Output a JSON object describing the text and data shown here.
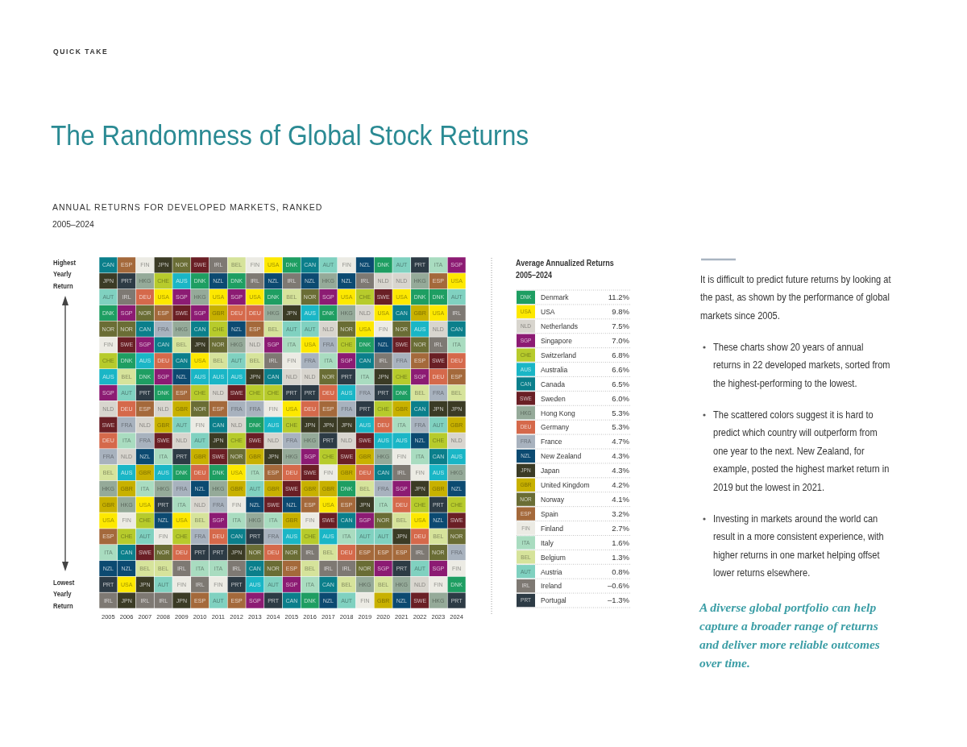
{
  "chart_data": [
    {
      "type": "heatmap",
      "title": "The Randomness of Global Stock Returns",
      "subtitle": "ANNUAL RETURNS FOR DEVELOPED MARKETS, RANKED",
      "annotations": [
        "QUICK TAKE",
        "2005–2024",
        "Highest Yearly Return",
        "Lowest Yearly Return"
      ],
      "categories": [
        "2005",
        "2006",
        "2007",
        "2008",
        "2009",
        "2010",
        "2011",
        "2012",
        "2013",
        "2014",
        "2015",
        "2016",
        "2017",
        "2018",
        "2019",
        "2020",
        "2021",
        "2022",
        "2023",
        "2024"
      ],
      "y_categories": [
        null,
        null,
        null,
        null,
        null,
        null,
        null,
        null,
        null,
        null,
        null,
        null,
        null,
        null,
        null,
        null,
        null,
        null,
        null,
        null,
        null,
        null
      ],
      "cells": [
        [
          "CAN",
          "ESP",
          "FIN",
          "JPN",
          "NOR",
          "SWE",
          "IRL",
          "BEL",
          "FIN",
          "USA",
          "DNK",
          "CAN",
          "AUT",
          "FIN",
          "NZL",
          "DNK",
          "AUT",
          "PRT",
          "ITA",
          "SGP"
        ],
        [
          "JPN",
          "PRT",
          "HKG",
          "CHE",
          "AUS",
          "DNK",
          "NZL",
          "DNK",
          "IRL",
          "NZL",
          "IRL",
          "NZL",
          "HKG",
          "NZL",
          "IRL",
          "NLD",
          "NLD",
          "HKG",
          "ESP",
          "USA"
        ],
        [
          "AUT",
          "IRL",
          "DEU",
          "USA",
          "SGP",
          "HKG",
          "USA",
          "SGP",
          "USA",
          "DNK",
          "BEL",
          "NOR",
          "SGP",
          "USA",
          "CHE",
          "SWE",
          "USA",
          "DNK",
          "DNK",
          "AUT"
        ],
        [
          "DNK",
          "SGP",
          "NOR",
          "ESP",
          "SWE",
          "SGP",
          "GBR",
          "DEU",
          "DEU",
          "HKG",
          "JPN",
          "AUS",
          "DNK",
          "HKG",
          "NLD",
          "USA",
          "CAN",
          "GBR",
          "USA",
          "IRL"
        ],
        [
          "NOR",
          "NOR",
          "CAN",
          "FRA",
          "HKG",
          "CAN",
          "CHE",
          "NZL",
          "ESP",
          "BEL",
          "AUT",
          "AUT",
          "NLD",
          "NOR",
          "USA",
          "FIN",
          "NOR",
          "AUS",
          "NLD",
          "CAN"
        ],
        [
          "FIN",
          "SWE",
          "SGP",
          "CAN",
          "BEL",
          "JPN",
          "NOR",
          "HKG",
          "NLD",
          "SGP",
          "ITA",
          "USA",
          "FRA",
          "CHE",
          "DNK",
          "NZL",
          "SWE",
          "NOR",
          "IRL",
          "ITA"
        ],
        [
          "CHE",
          "DNK",
          "AUS",
          "DEU",
          "CAN",
          "USA",
          "BEL",
          "AUT",
          "BEL",
          "IRL",
          "FIN",
          "FRA",
          "ITA",
          "SGP",
          "CAN",
          "IRL",
          "FRA",
          "ESP",
          "SWE",
          "DEU"
        ],
        [
          "AUS",
          "BEL",
          "DNK",
          "SGP",
          "NZL",
          "AUS",
          "AUS",
          "AUS",
          "JPN",
          "CAN",
          "NLD",
          "NLD",
          "NOR",
          "PRT",
          "ITA",
          "JPN",
          "CHE",
          "SGP",
          "DEU",
          "ESP"
        ],
        [
          "SGP",
          "AUT",
          "PRT",
          "DNK",
          "ESP",
          "CHE",
          "NLD",
          "SWE",
          "CHE",
          "CHE",
          "PRT",
          "PRT",
          "DEU",
          "AUS",
          "FRA",
          "PRT",
          "DNK",
          "BEL",
          "FRA",
          "BEL"
        ],
        [
          "NLD",
          "DEU",
          "ESP",
          "NLD",
          "GBR",
          "NOR",
          "ESP",
          "FRA",
          "FRA",
          "FIN",
          "USA",
          "DEU",
          "ESP",
          "FRA",
          "PRT",
          "CHE",
          "GBR",
          "CAN",
          "JPN",
          "JPN"
        ],
        [
          "SWE",
          "FRA",
          "NLD",
          "GBR",
          "AUT",
          "FIN",
          "CAN",
          "NLD",
          "DNK",
          "AUS",
          "CHE",
          "JPN",
          "JPN",
          "JPN",
          "AUS",
          "DEU",
          "ITA",
          "FRA",
          "AUT",
          "GBR"
        ],
        [
          "DEU",
          "ITA",
          "FRA",
          "SWE",
          "NLD",
          "AUT",
          "JPN",
          "CHE",
          "SWE",
          "NLD",
          "FRA",
          "HKG",
          "PRT",
          "NLD",
          "SWE",
          "AUS",
          "AUS",
          "NZL",
          "CHE",
          "NLD"
        ],
        [
          "FRA",
          "NLD",
          "NZL",
          "ITA",
          "PRT",
          "GBR",
          "SWE",
          "NOR",
          "GBR",
          "JPN",
          "HKG",
          "SGP",
          "CHE",
          "SWE",
          "GBR",
          "HKG",
          "FIN",
          "ITA",
          "CAN",
          "AUS"
        ],
        [
          "BEL",
          "AUS",
          "GBR",
          "AUS",
          "DNK",
          "DEU",
          "DNK",
          "USA",
          "ITA",
          "ESP",
          "DEU",
          "SWE",
          "FIN",
          "GBR",
          "DEU",
          "CAN",
          "IRL",
          "FIN",
          "AUS",
          "HKG"
        ],
        [
          "HKG",
          "GBR",
          "ITA",
          "HKG",
          "FRA",
          "NZL",
          "HKG",
          "GBR",
          "AUT",
          "GBR",
          "SWE",
          "GBR",
          "GBR",
          "DNK",
          "BEL",
          "FRA",
          "SGP",
          "JPN",
          "GBR",
          "NZL"
        ],
        [
          "GBR",
          "HKG",
          "USA",
          "PRT",
          "ITA",
          "NLD",
          "FRA",
          "FIN",
          "NZL",
          "SWE",
          "NZL",
          "ESP",
          "USA",
          "ESP",
          "JPN",
          "ITA",
          "DEU",
          "CHE",
          "PRT",
          "CHE"
        ],
        [
          "USA",
          "FIN",
          "CHE",
          "NZL",
          "USA",
          "BEL",
          "SGP",
          "ITA",
          "HKG",
          "ITA",
          "GBR",
          "FIN",
          "SWE",
          "CAN",
          "SGP",
          "NOR",
          "BEL",
          "USA",
          "NZL",
          "SWE"
        ],
        [
          "ESP",
          "CHE",
          "AUT",
          "FIN",
          "CHE",
          "FRA",
          "DEU",
          "CAN",
          "PRT",
          "FRA",
          "AUS",
          "CHE",
          "AUS",
          "ITA",
          "AUT",
          "AUT",
          "JPN",
          "DEU",
          "BEL",
          "NOR"
        ],
        [
          "ITA",
          "CAN",
          "SWE",
          "NOR",
          "DEU",
          "PRT",
          "PRT",
          "JPN",
          "NOR",
          "DEU",
          "NOR",
          "IRL",
          "BEL",
          "DEU",
          "ESP",
          "ESP",
          "ESP",
          "IRL",
          "NOR",
          "FRA"
        ],
        [
          "NZL",
          "NZL",
          "BEL",
          "BEL",
          "IRL",
          "ITA",
          "ITA",
          "IRL",
          "CAN",
          "NOR",
          "ESP",
          "BEL",
          "IRL",
          "IRL",
          "NOR",
          "SGP",
          "PRT",
          "AUT",
          "SGP",
          "FIN"
        ],
        [
          "PRT",
          "USA",
          "JPN",
          "AUT",
          "FIN",
          "IRL",
          "FIN",
          "PRT",
          "AUS",
          "AUT",
          "SGP",
          "ITA",
          "CAN",
          "BEL",
          "HKG",
          "BEL",
          "HKG",
          "NLD",
          "FIN",
          "DNK"
        ],
        [
          "IRL",
          "JPN",
          "IRL",
          "IRL",
          "JPN",
          "ESP",
          "AUT",
          "ESP",
          "SGP",
          "PRT",
          "CAN",
          "DNK",
          "NZL",
          "AUT",
          "FIN",
          "GBR",
          "NZL",
          "SWE",
          "HKG",
          "PRT"
        ]
      ],
      "colors": [
        [
          "#0b7f8b",
          "#a4693b",
          "#ecebe4",
          "#3b3b25",
          "#6a6d35",
          "#6a1f25",
          "#7e7973",
          "#d6e39b",
          "#ecebe4",
          "#fde800",
          "#1e9e62",
          "#0b7f8b",
          "#80d1c0",
          "#ecebe4",
          "#0c4a71",
          "#1e9e62",
          "#80d1c0",
          "#2d3b45",
          "#a9dcc0",
          "#8c1b73"
        ],
        [
          "#3b3b25",
          "#2d3b45",
          "#95aa99",
          "#b7cb2c",
          "#1ab6c6",
          "#1e9e62",
          "#0c4a71",
          "#1e9e62",
          "#7e7973",
          "#0c4a71",
          "#7e7973",
          "#0c4a71",
          "#95aa99",
          "#0c4a71",
          "#7e7973",
          "#d8d5ce",
          "#d8d5ce",
          "#95aa99",
          "#a4693b",
          "#fde800"
        ],
        [
          "#80d1c0",
          "#7e7973",
          "#d5694b",
          "#fde800",
          "#8c1b73",
          "#95aa99",
          "#fde800",
          "#8c1b73",
          "#fde800",
          "#1e9e62",
          "#d6e39b",
          "#6a6d35",
          "#8c1b73",
          "#fde800",
          "#b7cb2c",
          "#6a1f25",
          "#fde800",
          "#1e9e62",
          "#1e9e62",
          "#80d1c0"
        ],
        [
          "#1e9e62",
          "#8c1b73",
          "#6a6d35",
          "#a4693b",
          "#6a1f25",
          "#8c1b73",
          "#c8b100",
          "#d5694b",
          "#d5694b",
          "#95aa99",
          "#3b3b25",
          "#1ab6c6",
          "#1e9e62",
          "#95aa99",
          "#d8d5ce",
          "#fde800",
          "#0b7f8b",
          "#c8b100",
          "#fde800",
          "#7e7973"
        ],
        [
          "#6a6d35",
          "#6a6d35",
          "#0b7f8b",
          "#a8b2be",
          "#95aa99",
          "#0b7f8b",
          "#b7cb2c",
          "#0c4a71",
          "#a4693b",
          "#d6e39b",
          "#80d1c0",
          "#80d1c0",
          "#d8d5ce",
          "#6a6d35",
          "#fde800",
          "#ecebe4",
          "#6a6d35",
          "#1ab6c6",
          "#d8d5ce",
          "#0b7f8b"
        ],
        [
          "#ecebe4",
          "#6a1f25",
          "#8c1b73",
          "#0b7f8b",
          "#d6e39b",
          "#3b3b25",
          "#6a6d35",
          "#95aa99",
          "#d8d5ce",
          "#8c1b73",
          "#a9dcc0",
          "#fde800",
          "#a8b2be",
          "#b7cb2c",
          "#1e9e62",
          "#0c4a71",
          "#6a1f25",
          "#6a6d35",
          "#7e7973",
          "#a9dcc0"
        ],
        [
          "#b7cb2c",
          "#1e9e62",
          "#1ab6c6",
          "#d5694b",
          "#0b7f8b",
          "#fde800",
          "#d6e39b",
          "#80d1c0",
          "#d6e39b",
          "#7e7973",
          "#ecebe4",
          "#a8b2be",
          "#a9dcc0",
          "#8c1b73",
          "#0b7f8b",
          "#7e7973",
          "#a8b2be",
          "#a4693b",
          "#6a1f25",
          "#d5694b"
        ],
        [
          "#1ab6c6",
          "#d6e39b",
          "#1e9e62",
          "#8c1b73",
          "#0c4a71",
          "#1ab6c6",
          "#1ab6c6",
          "#1ab6c6",
          "#3b3b25",
          "#0b7f8b",
          "#d8d5ce",
          "#d8d5ce",
          "#6a6d35",
          "#2d3b45",
          "#a9dcc0",
          "#3b3b25",
          "#b7cb2c",
          "#8c1b73",
          "#d5694b",
          "#a4693b"
        ],
        [
          "#8c1b73",
          "#80d1c0",
          "#2d3b45",
          "#1e9e62",
          "#a4693b",
          "#b7cb2c",
          "#d8d5ce",
          "#6a1f25",
          "#b7cb2c",
          "#b7cb2c",
          "#2d3b45",
          "#2d3b45",
          "#d5694b",
          "#1ab6c6",
          "#a8b2be",
          "#2d3b45",
          "#1e9e62",
          "#d6e39b",
          "#a8b2be",
          "#d6e39b"
        ],
        [
          "#d8d5ce",
          "#d5694b",
          "#a4693b",
          "#d8d5ce",
          "#c8b100",
          "#6a6d35",
          "#a4693b",
          "#a8b2be",
          "#a8b2be",
          "#ecebe4",
          "#fde800",
          "#d5694b",
          "#a4693b",
          "#a8b2be",
          "#2d3b45",
          "#b7cb2c",
          "#c8b100",
          "#0b7f8b",
          "#3b3b25",
          "#3b3b25"
        ],
        [
          "#6a1f25",
          "#a8b2be",
          "#d8d5ce",
          "#c8b100",
          "#80d1c0",
          "#ecebe4",
          "#0b7f8b",
          "#d8d5ce",
          "#1e9e62",
          "#1ab6c6",
          "#b7cb2c",
          "#3b3b25",
          "#3b3b25",
          "#3b3b25",
          "#1ab6c6",
          "#d5694b",
          "#a9dcc0",
          "#a8b2be",
          "#80d1c0",
          "#c8b100"
        ],
        [
          "#d5694b",
          "#a9dcc0",
          "#a8b2be",
          "#6a1f25",
          "#d8d5ce",
          "#80d1c0",
          "#3b3b25",
          "#b7cb2c",
          "#6a1f25",
          "#d8d5ce",
          "#a8b2be",
          "#95aa99",
          "#2d3b45",
          "#d8d5ce",
          "#6a1f25",
          "#1ab6c6",
          "#1ab6c6",
          "#0c4a71",
          "#b7cb2c",
          "#d8d5ce"
        ],
        [
          "#a8b2be",
          "#d8d5ce",
          "#0c4a71",
          "#a9dcc0",
          "#2d3b45",
          "#c8b100",
          "#6a1f25",
          "#6a6d35",
          "#c8b100",
          "#3b3b25",
          "#95aa99",
          "#8c1b73",
          "#b7cb2c",
          "#6a1f25",
          "#c8b100",
          "#95aa99",
          "#ecebe4",
          "#a9dcc0",
          "#0b7f8b",
          "#1ab6c6"
        ],
        [
          "#d6e39b",
          "#1ab6c6",
          "#c8b100",
          "#1ab6c6",
          "#1e9e62",
          "#d5694b",
          "#1e9e62",
          "#fde800",
          "#a9dcc0",
          "#a4693b",
          "#d5694b",
          "#6a1f25",
          "#ecebe4",
          "#c8b100",
          "#d5694b",
          "#0b7f8b",
          "#7e7973",
          "#ecebe4",
          "#1ab6c6",
          "#95aa99"
        ],
        [
          "#95aa99",
          "#c8b100",
          "#a9dcc0",
          "#95aa99",
          "#a8b2be",
          "#0c4a71",
          "#95aa99",
          "#c8b100",
          "#80d1c0",
          "#c8b100",
          "#6a1f25",
          "#c8b100",
          "#c8b100",
          "#1e9e62",
          "#d6e39b",
          "#a8b2be",
          "#8c1b73",
          "#3b3b25",
          "#c8b100",
          "#0c4a71"
        ],
        [
          "#c8b100",
          "#95aa99",
          "#fde800",
          "#2d3b45",
          "#a9dcc0",
          "#d8d5ce",
          "#a8b2be",
          "#ecebe4",
          "#0c4a71",
          "#6a1f25",
          "#0c4a71",
          "#a4693b",
          "#fde800",
          "#a4693b",
          "#3b3b25",
          "#a9dcc0",
          "#d5694b",
          "#b7cb2c",
          "#2d3b45",
          "#b7cb2c"
        ],
        [
          "#fde800",
          "#ecebe4",
          "#b7cb2c",
          "#0c4a71",
          "#fde800",
          "#d6e39b",
          "#8c1b73",
          "#a9dcc0",
          "#95aa99",
          "#a9dcc0",
          "#c8b100",
          "#ecebe4",
          "#6a1f25",
          "#0b7f8b",
          "#8c1b73",
          "#6a6d35",
          "#d6e39b",
          "#fde800",
          "#0c4a71",
          "#6a1f25"
        ],
        [
          "#a4693b",
          "#b7cb2c",
          "#80d1c0",
          "#ecebe4",
          "#b7cb2c",
          "#a8b2be",
          "#d5694b",
          "#0b7f8b",
          "#2d3b45",
          "#a8b2be",
          "#1ab6c6",
          "#b7cb2c",
          "#1ab6c6",
          "#a9dcc0",
          "#80d1c0",
          "#80d1c0",
          "#3b3b25",
          "#d5694b",
          "#d6e39b",
          "#6a6d35"
        ],
        [
          "#a9dcc0",
          "#0b7f8b",
          "#6a1f25",
          "#6a6d35",
          "#d5694b",
          "#2d3b45",
          "#2d3b45",
          "#3b3b25",
          "#6a6d35",
          "#d5694b",
          "#6a6d35",
          "#7e7973",
          "#d6e39b",
          "#d5694b",
          "#a4693b",
          "#a4693b",
          "#a4693b",
          "#7e7973",
          "#6a6d35",
          "#a8b2be"
        ],
        [
          "#0c4a71",
          "#0c4a71",
          "#d6e39b",
          "#d6e39b",
          "#7e7973",
          "#a9dcc0",
          "#a9dcc0",
          "#7e7973",
          "#0b7f8b",
          "#6a6d35",
          "#a4693b",
          "#d6e39b",
          "#7e7973",
          "#7e7973",
          "#6a6d35",
          "#8c1b73",
          "#2d3b45",
          "#80d1c0",
          "#8c1b73",
          "#ecebe4"
        ],
        [
          "#2d3b45",
          "#fde800",
          "#3b3b25",
          "#80d1c0",
          "#ecebe4",
          "#7e7973",
          "#ecebe4",
          "#2d3b45",
          "#1ab6c6",
          "#80d1c0",
          "#8c1b73",
          "#a9dcc0",
          "#0b7f8b",
          "#d6e39b",
          "#95aa99",
          "#d6e39b",
          "#95aa99",
          "#d8d5ce",
          "#ecebe4",
          "#1e9e62"
        ],
        [
          "#7e7973",
          "#3b3b25",
          "#7e7973",
          "#7e7973",
          "#3b3b25",
          "#a4693b",
          "#80d1c0",
          "#a4693b",
          "#8c1b73",
          "#2d3b45",
          "#0b7f8b",
          "#1e9e62",
          "#0c4a71",
          "#80d1c0",
          "#ecebe4",
          "#c8b100",
          "#0c4a71",
          "#6a1f25",
          "#95aa99",
          "#2d3b45"
        ]
      ]
    },
    {
      "type": "other",
      "title": "Average Annualized Returns",
      "subtitle": "2005–2024",
      "y_categories": [
        "DNK",
        "USA",
        "NLD",
        "SGP",
        "CHE",
        "AUS",
        "CAN",
        "SWE",
        "HKG",
        "DEU",
        "FRA",
        "NZL",
        "JPN",
        "GBR",
        "NOR",
        "ESP",
        "FIN",
        "ITA",
        "BEL",
        "AUT",
        "IRL",
        "PRT"
      ],
      "y2_categories": [
        "Denmark",
        "USA",
        "Netherlands",
        "Singapore",
        "Switzerland",
        "Australia",
        "Canada",
        "Sweden",
        "Hong Kong",
        "Germany",
        "France",
        "New Zealand",
        "Japan",
        "United Kingdom",
        "Norway",
        "Spain",
        "Finland",
        "Italy",
        "Belgium",
        "Austria",
        "Ireland",
        "Portugal"
      ],
      "values": [
        11.2,
        9.8,
        7.5,
        7.0,
        6.8,
        6.6,
        6.5,
        6.0,
        5.3,
        5.3,
        4.7,
        4.3,
        4.3,
        4.2,
        4.1,
        3.2,
        2.7,
        1.6,
        1.3,
        0.8,
        -0.6,
        -1.3
      ],
      "value_labels": [
        "11.2%",
        "9.8%",
        "7.5%",
        "7.0%",
        "6.8%",
        "6.6%",
        "6.5%",
        "6.0%",
        "5.3%",
        "5.3%",
        "4.7%",
        "4.3%",
        "4.3%",
        "4.2%",
        "4.1%",
        "3.2%",
        "2.7%",
        "1.6%",
        "1.3%",
        "0.8%",
        "–0.6%",
        "–1.3%"
      ],
      "colors": [
        "#1e9e62",
        "#fde800",
        "#d8d5ce",
        "#8c1b73",
        "#b7cb2c",
        "#1ab6c6",
        "#0b7f8b",
        "#6a1f25",
        "#95aa99",
        "#d5694b",
        "#a8b2be",
        "#0c4a71",
        "#3b3b25",
        "#c8b100",
        "#6a6d35",
        "#a4693b",
        "#ecebe4",
        "#a9dcc0",
        "#d6e39b",
        "#80d1c0",
        "#7e7973",
        "#2d3b45"
      ]
    },
    {
      "type": "other",
      "annotations": [
        "It is difficult to predict future returns by looking at the past, as shown by the performance of global markets since 2005.",
        "These charts show 20 years of annual returns in 22 developed markets, sorted from the highest-performing to the lowest.",
        "The scattered colors suggest it is hard to predict which country will outperform from one year to the next. New Zealand, for example, posted the highest market return in 2019 but the lowest in 2021.",
        "Investing in markets around the world can result in a more consistent experience, with higher returns in one market helping offset lower returns elsewhere.",
        "A diverse global portfolio can help capture a broader range of returns and deliver more reliable outcomes over time."
      ]
    }
  ]
}
